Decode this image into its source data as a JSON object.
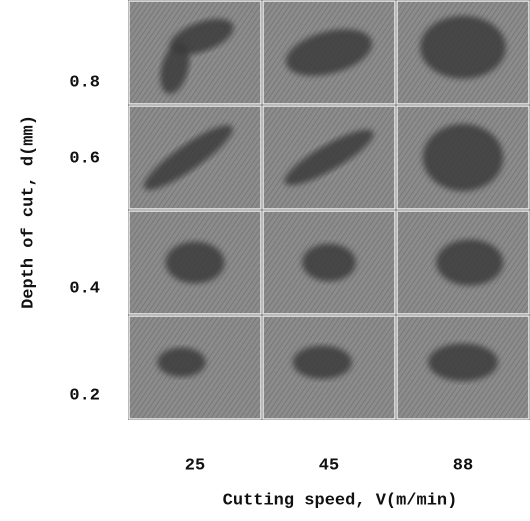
{
  "figure": {
    "x_label": "Cutting speed, V(m/min)",
    "y_label": "Depth of cut, d(mm)",
    "x_ticks": [
      "25",
      "45",
      "88"
    ],
    "y_ticks": [
      "0.8",
      "0.6",
      "0.4",
      "0.2"
    ]
  }
}
